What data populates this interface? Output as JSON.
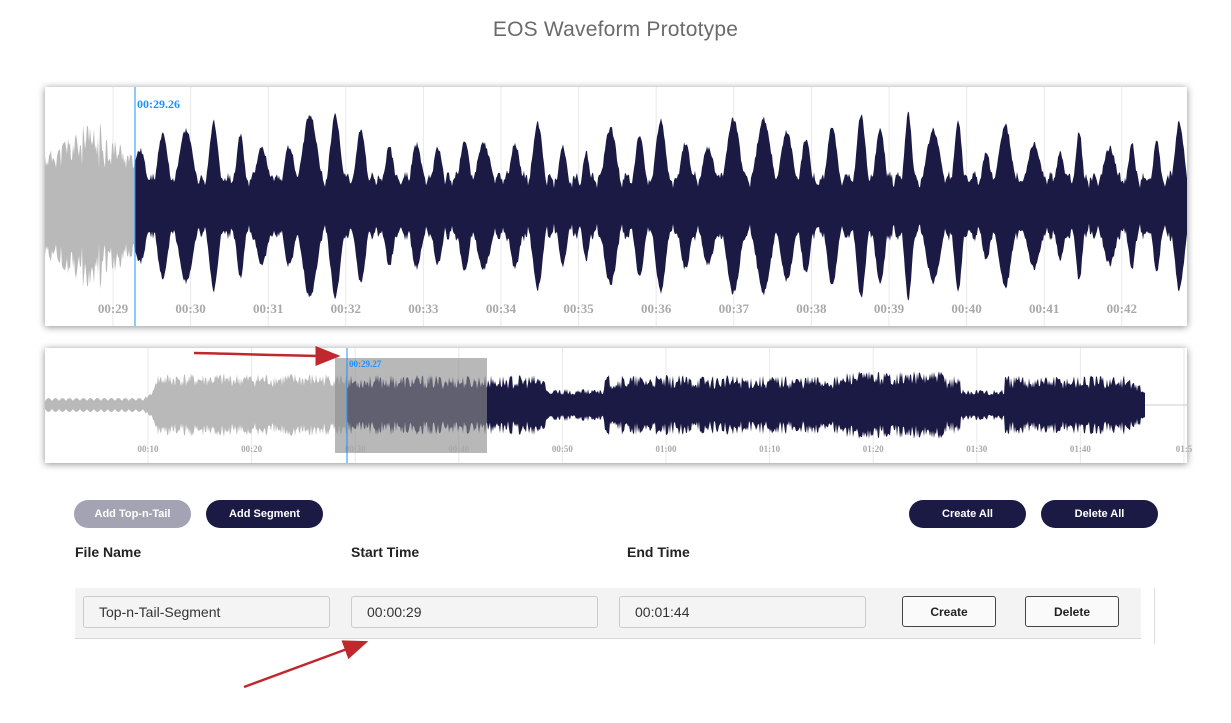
{
  "page": {
    "title": "EOS Waveform Prototype"
  },
  "zoomview": {
    "playhead_time": "00:29.26",
    "ticks": [
      "00:29",
      "00:30",
      "00:31",
      "00:32",
      "00:33",
      "00:34",
      "00:35",
      "00:36",
      "00:37",
      "00:38",
      "00:39",
      "00:40",
      "00:41",
      "00:42"
    ],
    "played_color": "#b9b9b9",
    "wave_color": "#1b1a44",
    "playhead_color": "#1e90ff"
  },
  "overview": {
    "playhead_time": "00:29.27",
    "ticks": [
      "00:10",
      "00:20",
      "00:30",
      "00:40",
      "00:50",
      "01:00",
      "01:10",
      "01:20",
      "01:30",
      "01:40",
      "01:5"
    ]
  },
  "toolbar": {
    "add_top_n_tail": "Add Top-n-Tail",
    "add_segment": "Add Segment",
    "create_all": "Create All",
    "delete_all": "Delete All"
  },
  "table": {
    "headers": {
      "file_name": "File Name",
      "start_time": "Start Time",
      "end_time": "End Time"
    },
    "rows": [
      {
        "file_name": "Top-n-Tail-Segment",
        "start_time": "00:00:29",
        "end_time": "00:01:44",
        "create": "Create",
        "delete": "Delete"
      }
    ]
  },
  "colors": {
    "accent": "#1b1a44",
    "muted_button": "#a4a3b3",
    "annotation_arrow": "#c0282d"
  }
}
